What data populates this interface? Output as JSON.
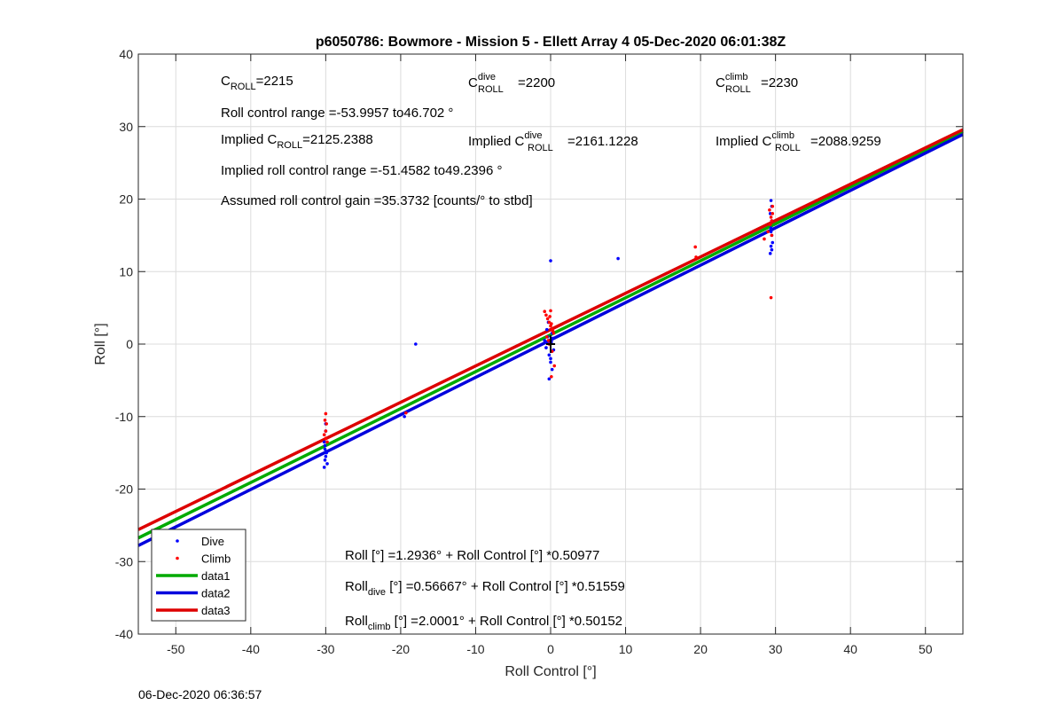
{
  "chart_data": {
    "type": "scatter",
    "title": "p6050786: Bowmore - Mission 5 - Ellett Array 4 05-Dec-2020 06:01:38Z",
    "xlabel": "Roll Control [°]",
    "ylabel": "Roll [°]",
    "xlim": [
      -55,
      55
    ],
    "ylim": [
      -40,
      40
    ],
    "xticks": [
      -50,
      -40,
      -30,
      -20,
      -10,
      0,
      10,
      20,
      30,
      40,
      50
    ],
    "yticks": [
      -40,
      -30,
      -20,
      -10,
      0,
      10,
      20,
      30,
      40
    ],
    "grid": true,
    "legend_position": "bottom-left",
    "footer": "06-Dec-2020 06:36:57",
    "colors": {
      "dive": "#0000ff",
      "climb": "#ff0000",
      "data1": "#00aa00",
      "data2": "#0000dd",
      "data3": "#dd0000",
      "marker": "#000000"
    },
    "series": [
      {
        "name": "Dive",
        "kind": "points",
        "color": "#0000ff",
        "x": [
          -30,
          -30.2,
          -30.1,
          -29.9,
          -30,
          -30.1,
          -30.2,
          -29.8,
          -30,
          -30.1,
          -19.5,
          -18,
          -0.8,
          -0.5,
          -0.3,
          -0.6,
          -0.2,
          0,
          0.2,
          -0.4,
          -0.1,
          0.1,
          0.3,
          -0.2,
          0,
          -0.5,
          -0.3,
          0.4,
          0.2,
          0,
          0.1,
          9,
          29.4,
          29.5,
          29.3,
          29.4,
          29.5,
          29.6,
          29.4,
          29.3,
          29.5,
          29.4,
          29.5
        ],
        "y": [
          -12,
          -13.5,
          -14.5,
          -15,
          -15.5,
          -16,
          -17,
          -16.5,
          -11,
          -14,
          -10,
          0,
          0.5,
          2,
          3,
          -0.5,
          -1.5,
          -2.5,
          -3.5,
          1,
          0,
          -1,
          0.8,
          -4.8,
          -2,
          0.2,
          0.4,
          -0.8,
          1.5,
          11.5,
          0.3,
          11.8,
          19.8,
          19,
          18,
          16,
          15,
          14,
          13.5,
          12.5,
          17,
          15.5,
          13
        ],
        "label": "Dive"
      },
      {
        "name": "Climb",
        "kind": "points",
        "color": "#ff0000",
        "x": [
          -30,
          -30.1,
          -29.9,
          -30,
          -30.2,
          -29.8,
          -30,
          -19.3,
          -0.8,
          -0.6,
          -0.4,
          -0.2,
          0,
          0.2,
          0.4,
          -0.5,
          -0.3,
          -0.1,
          0.1,
          0.3,
          0,
          -0.2,
          0.2,
          0.5,
          0.1,
          19.3,
          19.4,
          28.5,
          29,
          29.3,
          29.5,
          29.4,
          29.6,
          29.2,
          29.5,
          29.4,
          29.6
        ],
        "y": [
          -9.6,
          -10.5,
          -11,
          -12,
          -12.5,
          -13.5,
          -13,
          -9.5,
          4.5,
          4,
          3.5,
          3,
          2.5,
          2,
          1.5,
          1,
          0.5,
          3.8,
          2.8,
          1.8,
          4.6,
          0,
          -1,
          -3,
          -4.5,
          13.4,
          12,
          14.5,
          15.5,
          16.5,
          17,
          17.5,
          18,
          18.5,
          15,
          6.4,
          19
        ],
        "label": "Climb"
      },
      {
        "name": "data1",
        "kind": "line",
        "color": "#00aa00",
        "intercept": 1.2936,
        "slope": 0.50977,
        "label": "data1"
      },
      {
        "name": "data2",
        "kind": "line",
        "color": "#0000dd",
        "intercept": 0.56667,
        "slope": 0.51559,
        "label": "data2"
      },
      {
        "name": "data3",
        "kind": "line",
        "color": "#dd0000",
        "intercept": 2.0001,
        "slope": 0.50152,
        "label": "data3"
      }
    ]
  },
  "annotations": {
    "c_roll_prefix": "C",
    "c_roll_sub": "ROLL",
    "c_roll_value": "=2215",
    "c_dive_prefix": "C",
    "c_dive_sup": "dive",
    "c_dive_sub": "ROLL",
    "c_dive_value": "=2200",
    "c_climb_prefix": "C",
    "c_climb_sup": "climb",
    "c_climb_sub": "ROLL",
    "c_climb_value": "=2230",
    "roll_range": "Roll control range =-53.9957 to46.702 °",
    "implied_c_roll_prefix": "Implied C",
    "implied_c_roll_sub": "ROLL",
    "implied_c_roll_value": "=2125.2388",
    "implied_c_dive_prefix": "Implied C",
    "implied_c_dive_sup": "dive",
    "implied_c_dive_sub": "ROLL",
    "implied_c_dive_value": "=2161.1228",
    "implied_c_climb_prefix": "Implied C",
    "implied_c_climb_sup": "climb",
    "implied_c_climb_sub": "ROLL",
    "implied_c_climb_value": "=2088.9259",
    "implied_range": "Implied roll control range =-51.4582 to49.2396 °",
    "gain": "Assumed roll control gain =35.3732 [counts/° to stbd]",
    "fit_all": "Roll [°] =1.2936° + Roll Control [°] *0.50977",
    "fit_dive_prefix": "Roll",
    "fit_dive_sub": "dive",
    "fit_dive_rest": " [°] =0.56667° + Roll Control [°] *0.51559",
    "fit_climb_prefix": "Roll",
    "fit_climb_sub": "climb",
    "fit_climb_rest": " [°] =2.0001° + Roll Control [°] *0.50152"
  }
}
